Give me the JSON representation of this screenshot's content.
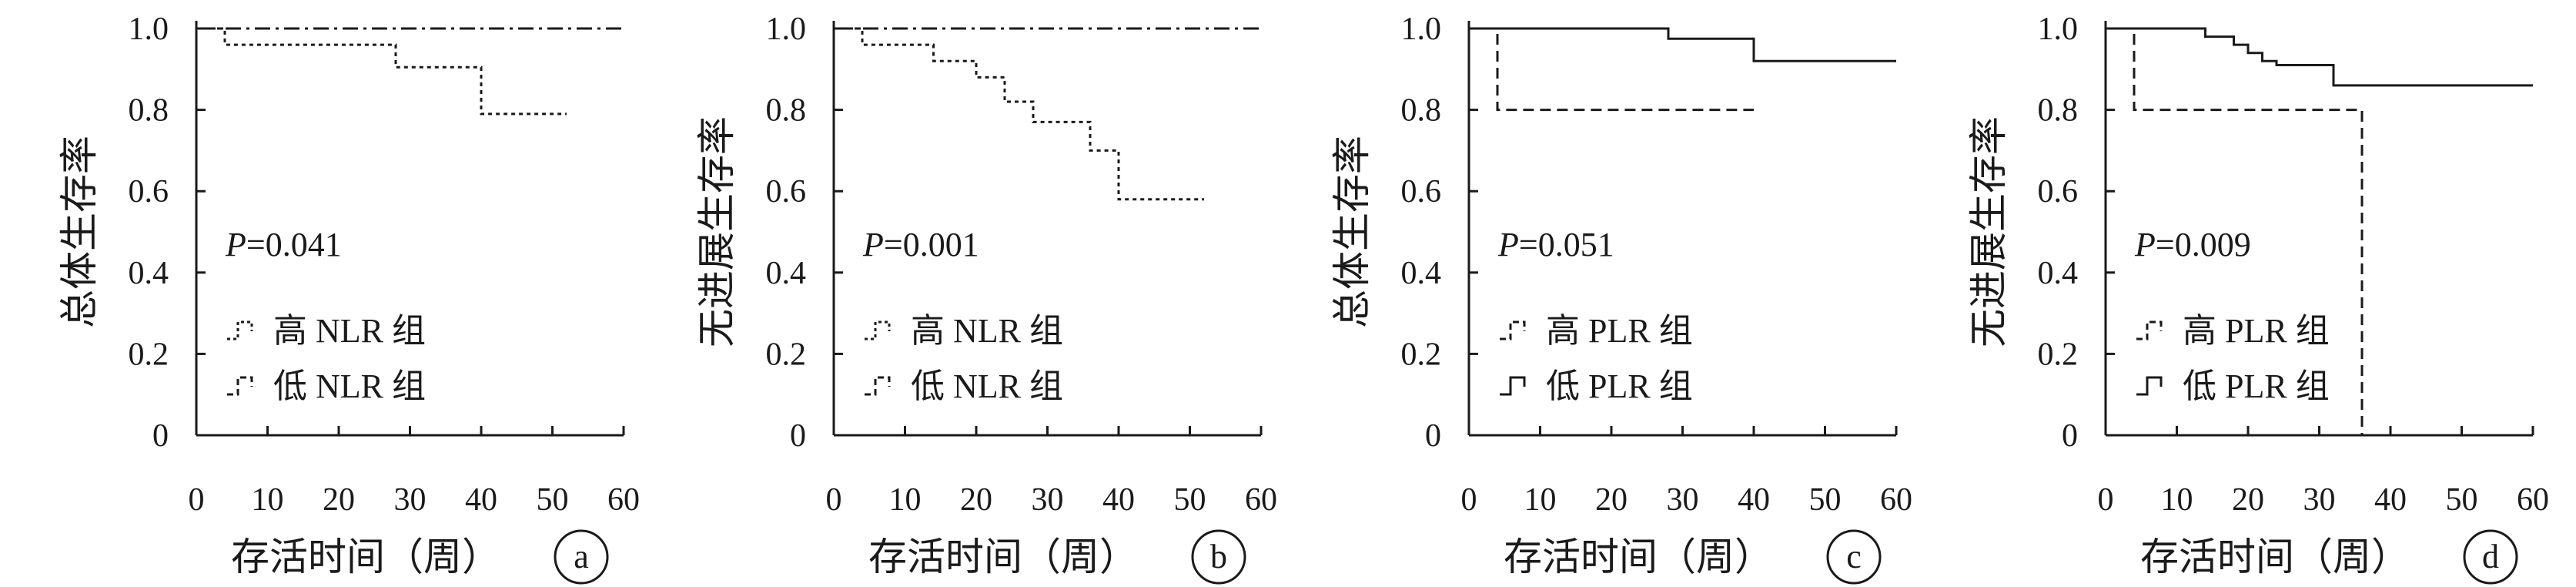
{
  "chart_data": [
    {
      "type": "line",
      "panel_label": "a",
      "ylabel": "总体生存率",
      "xlabel": "存活时间（周）",
      "xlim": [
        0,
        60
      ],
      "ylim": [
        0,
        1.0
      ],
      "xticks": [
        "0",
        "10",
        "20",
        "30",
        "40",
        "50",
        "60"
      ],
      "yticks": [
        "0",
        "0.2",
        "0.4",
        "0.6",
        "0.8",
        "1.0"
      ],
      "annotation_p": "P",
      "annotation_value": "=0.041",
      "legend": [
        "高 NLR 组",
        "低 NLR 组"
      ],
      "series": [
        {
          "name": "高 NLR 组",
          "style": "dotted",
          "points": [
            [
              0,
              1.0
            ],
            [
              4,
              1.0
            ],
            [
              4,
              0.96
            ],
            [
              28,
              0.96
            ],
            [
              28,
              0.905
            ],
            [
              40,
              0.905
            ],
            [
              40,
              0.79
            ],
            [
              52,
              0.79
            ]
          ]
        },
        {
          "name": "低 NLR 组",
          "style": "dashdot",
          "points": [
            [
              0,
              1.0
            ],
            [
              60,
              1.0
            ]
          ]
        }
      ]
    },
    {
      "type": "line",
      "panel_label": "b",
      "ylabel": "无进展生存率",
      "xlabel": "存活时间（周）",
      "xlim": [
        0,
        60
      ],
      "ylim": [
        0,
        1.0
      ],
      "xticks": [
        "0",
        "10",
        "20",
        "30",
        "40",
        "50",
        "60"
      ],
      "yticks": [
        "0",
        "0.2",
        "0.4",
        "0.6",
        "0.8",
        "1.0"
      ],
      "annotation_p": "P",
      "annotation_value": "=0.001",
      "legend": [
        "高 NLR 组",
        "低 NLR 组"
      ],
      "series": [
        {
          "name": "高 NLR 组",
          "style": "dotted",
          "points": [
            [
              0,
              1.0
            ],
            [
              4,
              1.0
            ],
            [
              4,
              0.96
            ],
            [
              14,
              0.96
            ],
            [
              14,
              0.92
            ],
            [
              20,
              0.92
            ],
            [
              20,
              0.88
            ],
            [
              24,
              0.88
            ],
            [
              24,
              0.82
            ],
            [
              28,
              0.82
            ],
            [
              28,
              0.77
            ],
            [
              36,
              0.77
            ],
            [
              36,
              0.7
            ],
            [
              40,
              0.7
            ],
            [
              40,
              0.58
            ],
            [
              52,
              0.58
            ]
          ]
        },
        {
          "name": "低 NLR 组",
          "style": "dashdot",
          "points": [
            [
              0,
              1.0
            ],
            [
              60,
              1.0
            ]
          ]
        }
      ]
    },
    {
      "type": "line",
      "panel_label": "c",
      "ylabel": "总体生存率",
      "xlabel": "存活时间（周）",
      "xlim": [
        0,
        60
      ],
      "ylim": [
        0,
        1.0
      ],
      "xticks": [
        "0",
        "10",
        "20",
        "30",
        "40",
        "50",
        "60"
      ],
      "yticks": [
        "0",
        "0.2",
        "0.4",
        "0.6",
        "0.8",
        "1.0"
      ],
      "annotation_p": "P",
      "annotation_value": "=0.051",
      "legend": [
        "高 PLR 组",
        "低 PLR 组"
      ],
      "series": [
        {
          "name": "高 PLR 组",
          "style": "dashed",
          "points": [
            [
              0,
              1.0
            ],
            [
              4,
              1.0
            ],
            [
              4,
              0.8
            ],
            [
              40,
              0.8
            ]
          ]
        },
        {
          "name": "低 PLR 组",
          "style": "solid",
          "points": [
            [
              0,
              1.0
            ],
            [
              28,
              1.0
            ],
            [
              28,
              0.975
            ],
            [
              40,
              0.975
            ],
            [
              40,
              0.92
            ],
            [
              60,
              0.92
            ]
          ]
        }
      ]
    },
    {
      "type": "line",
      "panel_label": "d",
      "ylabel": "无进展生存率",
      "xlabel": "存活时间（周）",
      "xlim": [
        0,
        60
      ],
      "ylim": [
        0,
        1.0
      ],
      "xticks": [
        "0",
        "10",
        "20",
        "30",
        "40",
        "50",
        "60"
      ],
      "yticks": [
        "0",
        "0.2",
        "0.4",
        "0.6",
        "0.8",
        "1.0"
      ],
      "annotation_p": "P",
      "annotation_value": "=0.009",
      "legend": [
        "高 PLR 组",
        "低 PLR 组"
      ],
      "series": [
        {
          "name": "高 PLR 组",
          "style": "dashed",
          "points": [
            [
              0,
              1.0
            ],
            [
              4,
              1.0
            ],
            [
              4,
              0.8
            ],
            [
              36,
              0.8
            ],
            [
              36,
              0.0
            ]
          ]
        },
        {
          "name": "低 PLR 组",
          "style": "solid",
          "points": [
            [
              0,
              1.0
            ],
            [
              14,
              1.0
            ],
            [
              14,
              0.98
            ],
            [
              18,
              0.98
            ],
            [
              18,
              0.96
            ],
            [
              20,
              0.96
            ],
            [
              20,
              0.94
            ],
            [
              22,
              0.94
            ],
            [
              22,
              0.92
            ],
            [
              24,
              0.92
            ],
            [
              24,
              0.91
            ],
            [
              32,
              0.91
            ],
            [
              32,
              0.86
            ],
            [
              60,
              0.86
            ]
          ]
        }
      ]
    }
  ]
}
